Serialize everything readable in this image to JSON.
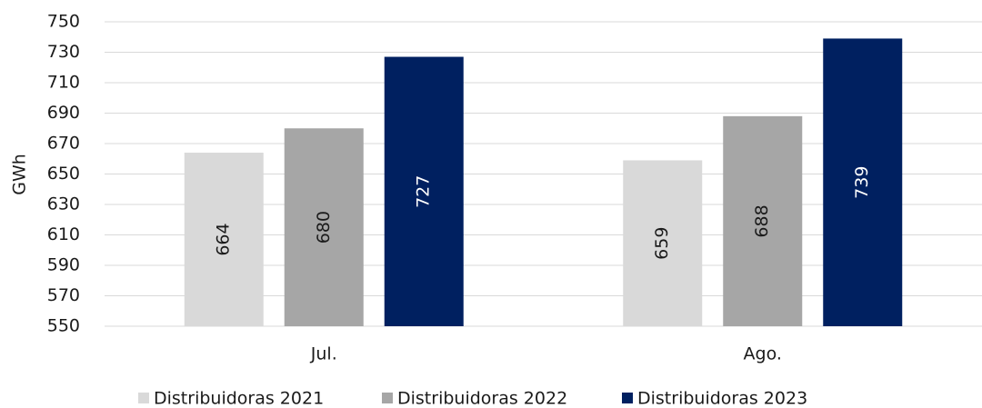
{
  "chart_data": {
    "type": "bar",
    "y_label": "GWh",
    "categories": [
      "Jul.",
      "Ago."
    ],
    "series": [
      {
        "name": "Distribuidoras 2021",
        "color": "#d9d9d9",
        "label_color": "#1a1a1a",
        "values": [
          664,
          659
        ]
      },
      {
        "name": "Distribuidoras 2022",
        "color": "#a6a6a6",
        "label_color": "#1a1a1a",
        "values": [
          680,
          688
        ]
      },
      {
        "name": "Distribuidoras 2023",
        "color": "#002060",
        "label_color": "#ffffff",
        "values": [
          727,
          739
        ]
      }
    ],
    "ylim": [
      550,
      750
    ],
    "yticks": [
      550,
      570,
      590,
      610,
      630,
      650,
      670,
      690,
      710,
      730,
      750
    ],
    "grid": true,
    "legend": "bottom"
  }
}
